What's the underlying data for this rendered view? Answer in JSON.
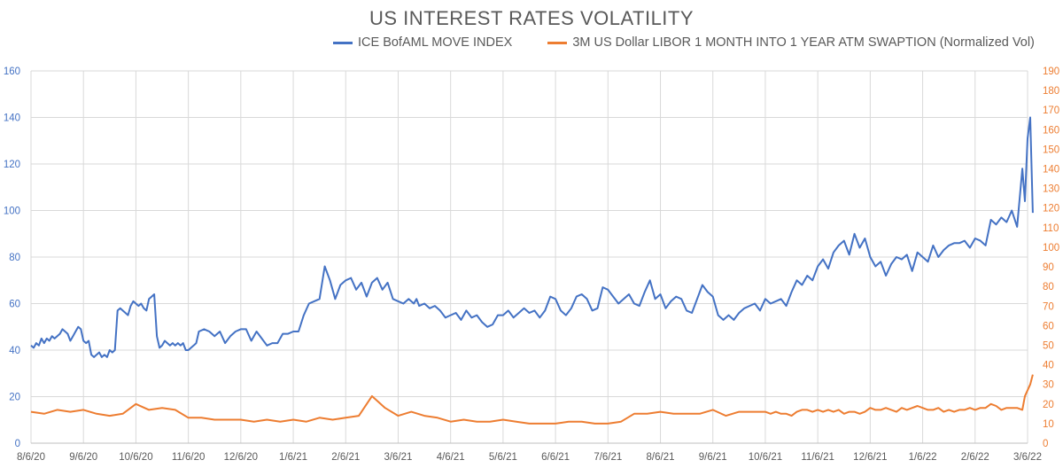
{
  "chart_data": {
    "type": "line",
    "title": "US INTEREST RATES VOLATILITY",
    "grid": true,
    "legend": "top",
    "x_ticks": [
      "8/6/20",
      "9/6/20",
      "10/6/20",
      "11/6/20",
      "12/6/20",
      "1/6/21",
      "2/6/21",
      "3/6/21",
      "4/6/21",
      "5/6/21",
      "6/6/21",
      "7/6/21",
      "8/6/21",
      "9/6/21",
      "10/6/21",
      "11/6/21",
      "12/6/21",
      "1/6/22",
      "2/6/22",
      "3/6/22"
    ],
    "y_left": {
      "lim": [
        0,
        160
      ],
      "ticks": [
        "0",
        "20",
        "40",
        "60",
        "80",
        "100",
        "120",
        "140",
        "160"
      ],
      "color": "#4472c4"
    },
    "y_right": {
      "lim": [
        0,
        190
      ],
      "ticks": [
        "0",
        "10",
        "20",
        "30",
        "40",
        "50",
        "60",
        "70",
        "80",
        "90",
        "100",
        "110",
        "120",
        "130",
        "140",
        "150",
        "160",
        "170",
        "180",
        "190"
      ],
      "color": "#ed7d31"
    },
    "series": [
      {
        "name": "ICE BofAML MOVE INDEX",
        "axis": "left",
        "color": "#4472c4",
        "x": [
          0,
          0.05,
          0.1,
          0.15,
          0.2,
          0.25,
          0.3,
          0.35,
          0.4,
          0.45,
          0.5,
          0.55,
          0.6,
          0.65,
          0.7,
          0.75,
          0.8,
          0.85,
          0.9,
          0.95,
          1.0,
          1.05,
          1.1,
          1.15,
          1.2,
          1.25,
          1.3,
          1.35,
          1.4,
          1.45,
          1.5,
          1.55,
          1.6,
          1.65,
          1.7,
          1.75,
          1.8,
          1.85,
          1.9,
          1.95,
          2.0,
          2.05,
          2.1,
          2.15,
          2.2,
          2.25,
          2.3,
          2.35,
          2.4,
          2.45,
          2.5,
          2.55,
          2.6,
          2.65,
          2.7,
          2.75,
          2.8,
          2.85,
          2.9,
          2.95,
          3.0,
          3.05,
          3.1,
          3.15,
          3.2,
          3.3,
          3.4,
          3.5,
          3.6,
          3.7,
          3.8,
          3.9,
          4.0,
          4.1,
          4.2,
          4.3,
          4.4,
          4.5,
          4.6,
          4.7,
          4.8,
          4.9,
          5.0,
          5.1,
          5.2,
          5.3,
          5.4,
          5.5,
          5.6,
          5.7,
          5.8,
          5.9,
          6.0,
          6.1,
          6.2,
          6.3,
          6.4,
          6.5,
          6.6,
          6.7,
          6.8,
          6.9,
          7.0,
          7.1,
          7.2,
          7.3,
          7.35,
          7.4,
          7.5,
          7.6,
          7.7,
          7.8,
          7.9,
          8.0,
          8.1,
          8.2,
          8.3,
          8.4,
          8.5,
          8.6,
          8.7,
          8.8,
          8.9,
          9.0,
          9.1,
          9.2,
          9.3,
          9.4,
          9.5,
          9.6,
          9.7,
          9.8,
          9.9,
          10.0,
          10.1,
          10.2,
          10.3,
          10.4,
          10.5,
          10.6,
          10.7,
          10.8,
          10.9,
          11.0,
          11.1,
          11.2,
          11.3,
          11.4,
          11.5,
          11.6,
          11.7,
          11.8,
          11.9,
          12.0,
          12.1,
          12.2,
          12.3,
          12.4,
          12.5,
          12.6,
          12.7,
          12.8,
          12.9,
          13.0,
          13.1,
          13.2,
          13.3,
          13.4,
          13.5,
          13.6,
          13.7,
          13.8,
          13.9,
          14.0,
          14.1,
          14.2,
          14.3,
          14.4,
          14.5,
          14.6,
          14.7,
          14.8,
          14.9,
          15.0,
          15.1,
          15.2,
          15.3,
          15.4,
          15.5,
          15.6,
          15.7,
          15.8,
          15.9,
          16.0,
          16.1,
          16.2,
          16.3,
          16.4,
          16.5,
          16.6,
          16.7,
          16.8,
          16.9,
          17.0,
          17.1,
          17.2,
          17.3,
          17.4,
          17.5,
          17.6,
          17.7,
          17.8,
          17.9,
          18.0,
          18.1,
          18.2,
          18.3,
          18.4,
          18.5,
          18.6,
          18.7,
          18.8,
          18.9,
          18.95,
          19.0,
          19.05,
          19.1
        ],
        "values": [
          42,
          41,
          43,
          42,
          45,
          43,
          45,
          44,
          46,
          45,
          46,
          47,
          49,
          48,
          47,
          44,
          46,
          48,
          50,
          49,
          44,
          43,
          44,
          38,
          37,
          38,
          39,
          37,
          38,
          37,
          40,
          39,
          40,
          57,
          58,
          57,
          56,
          55,
          59,
          61,
          60,
          59,
          60,
          58,
          57,
          62,
          63,
          64,
          46,
          41,
          42,
          44,
          43,
          42,
          43,
          42,
          43,
          42,
          43,
          40,
          40,
          41,
          42,
          43,
          48,
          49,
          48,
          46,
          48,
          43,
          46,
          48,
          49,
          49,
          44,
          48,
          45,
          42,
          43,
          43,
          47,
          47,
          48,
          48,
          55,
          60,
          61,
          62,
          76,
          70,
          62,
          68,
          70,
          71,
          66,
          69,
          63,
          69,
          71,
          66,
          69,
          62,
          61,
          60,
          62,
          60,
          62,
          59,
          60,
          58,
          59,
          57,
          54,
          55,
          56,
          53,
          57,
          54,
          55,
          52,
          50,
          51,
          55,
          55,
          57,
          54,
          56,
          58,
          56,
          57,
          54,
          57,
          63,
          62,
          57,
          55,
          58,
          63,
          64,
          62,
          57,
          58,
          67,
          66,
          63,
          60,
          62,
          64,
          60,
          59,
          65,
          70,
          62,
          64,
          58,
          61,
          63,
          62,
          57,
          56,
          62,
          68,
          65,
          63,
          55,
          53,
          55,
          53,
          56,
          58,
          59,
          60,
          57,
          62,
          60,
          61,
          62,
          59,
          65,
          70,
          68,
          72,
          70,
          76,
          79,
          75,
          82,
          85,
          87,
          81,
          90,
          84,
          88,
          80,
          76,
          78,
          72,
          77,
          80,
          79,
          81,
          74,
          82,
          80,
          78,
          85,
          80,
          83,
          85,
          86,
          86,
          87,
          84,
          88,
          87,
          85,
          96,
          94,
          97,
          95,
          100,
          93,
          118,
          104,
          131,
          140,
          99
        ]
      },
      {
        "name": "3M US Dollar LIBOR 1 MONTH INTO 1 YEAR ATM SWAPTION (Normalized Vol)",
        "axis": "right",
        "color": "#ed7d31",
        "x": [
          0,
          0.25,
          0.5,
          0.75,
          1.0,
          1.25,
          1.5,
          1.75,
          2.0,
          2.25,
          2.5,
          2.75,
          3.0,
          3.25,
          3.5,
          3.75,
          4.0,
          4.25,
          4.5,
          4.75,
          5.0,
          5.25,
          5.5,
          5.75,
          6.0,
          6.25,
          6.5,
          6.75,
          7.0,
          7.25,
          7.5,
          7.75,
          8.0,
          8.25,
          8.5,
          8.75,
          9.0,
          9.25,
          9.5,
          9.75,
          10.0,
          10.25,
          10.5,
          10.75,
          11.0,
          11.25,
          11.5,
          11.75,
          12.0,
          12.25,
          12.5,
          12.75,
          13.0,
          13.25,
          13.5,
          13.75,
          14.0,
          14.1,
          14.2,
          14.3,
          14.4,
          14.5,
          14.6,
          14.7,
          14.8,
          14.9,
          15.0,
          15.1,
          15.2,
          15.3,
          15.4,
          15.5,
          15.6,
          15.7,
          15.8,
          15.9,
          16.0,
          16.1,
          16.2,
          16.3,
          16.4,
          16.5,
          16.6,
          16.7,
          16.8,
          16.9,
          17.0,
          17.1,
          17.2,
          17.3,
          17.4,
          17.5,
          17.6,
          17.7,
          17.8,
          17.9,
          18.0,
          18.1,
          18.2,
          18.3,
          18.4,
          18.5,
          18.6,
          18.7,
          18.8,
          18.9,
          18.95,
          19.0,
          19.05,
          19.1
        ],
        "values": [
          16,
          15,
          17,
          16,
          17,
          15,
          14,
          15,
          20,
          17,
          18,
          17,
          13,
          13,
          12,
          12,
          12,
          11,
          12,
          11,
          12,
          11,
          13,
          12,
          13,
          14,
          24,
          18,
          14,
          16,
          14,
          13,
          11,
          12,
          11,
          11,
          12,
          11,
          10,
          10,
          10,
          11,
          11,
          10,
          10,
          11,
          15,
          15,
          16,
          15,
          15,
          15,
          17,
          14,
          16,
          16,
          16,
          15,
          16,
          15,
          15,
          14,
          16,
          17,
          17,
          16,
          17,
          16,
          17,
          16,
          17,
          15,
          16,
          16,
          15,
          16,
          18,
          17,
          17,
          18,
          17,
          16,
          18,
          17,
          18,
          19,
          18,
          17,
          17,
          18,
          16,
          17,
          16,
          17,
          17,
          18,
          17,
          18,
          18,
          20,
          19,
          17,
          18,
          18,
          18,
          17,
          24,
          27,
          30,
          35
        ]
      }
    ]
  }
}
